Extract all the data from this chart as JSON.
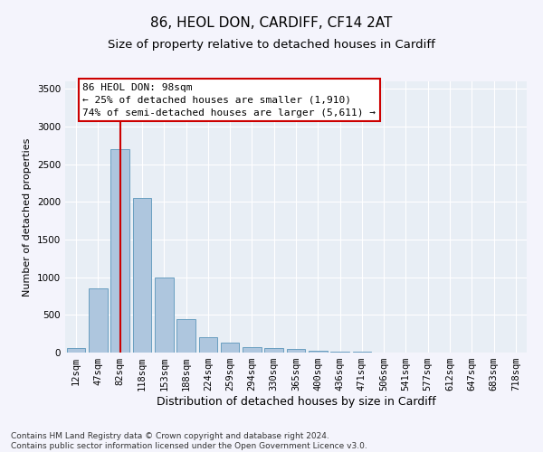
{
  "title": "86, HEOL DON, CARDIFF, CF14 2AT",
  "subtitle": "Size of property relative to detached houses in Cardiff",
  "xlabel": "Distribution of detached houses by size in Cardiff",
  "ylabel": "Number of detached properties",
  "categories": [
    "12sqm",
    "47sqm",
    "82sqm",
    "118sqm",
    "153sqm",
    "188sqm",
    "224sqm",
    "259sqm",
    "294sqm",
    "330sqm",
    "365sqm",
    "400sqm",
    "436sqm",
    "471sqm",
    "506sqm",
    "541sqm",
    "577sqm",
    "612sqm",
    "647sqm",
    "683sqm",
    "718sqm"
  ],
  "values": [
    60,
    850,
    2700,
    2050,
    1000,
    450,
    200,
    130,
    70,
    60,
    50,
    30,
    15,
    8,
    5,
    3,
    2,
    1,
    1,
    0,
    0
  ],
  "bar_color": "#aec6de",
  "bar_edge_color": "#6a9fc0",
  "vline_x": 2,
  "vline_color": "#cc0000",
  "annotation_text": "86 HEOL DON: 98sqm\n← 25% of detached houses are smaller (1,910)\n74% of semi-detached houses are larger (5,611) →",
  "annotation_box_facecolor": "#ffffff",
  "annotation_box_edgecolor": "#cc0000",
  "ylim": [
    0,
    3600
  ],
  "yticks": [
    0,
    500,
    1000,
    1500,
    2000,
    2500,
    3000,
    3500
  ],
  "fig_facecolor": "#f4f4fc",
  "ax_facecolor": "#e8eef5",
  "grid_color": "#ffffff",
  "footer_text": "Contains HM Land Registry data © Crown copyright and database right 2024.\nContains public sector information licensed under the Open Government Licence v3.0.",
  "title_fontsize": 11,
  "subtitle_fontsize": 9.5,
  "xlabel_fontsize": 9,
  "ylabel_fontsize": 8,
  "tick_fontsize": 7.5,
  "annotation_fontsize": 8,
  "footer_fontsize": 6.5
}
